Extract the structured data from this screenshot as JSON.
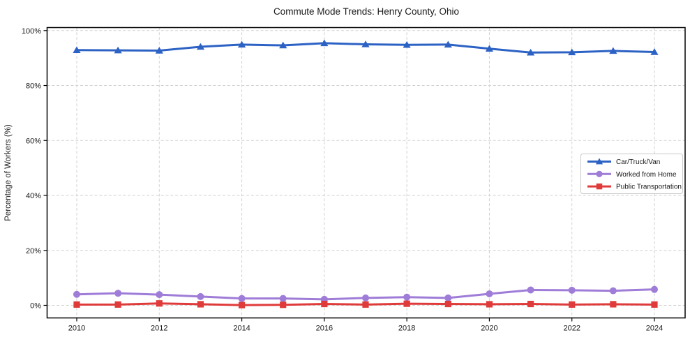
{
  "figure": {
    "background_color": "#ffffff",
    "plot_border_color": "#000000",
    "grid_color": "#d2d2d2"
  },
  "chart_data": {
    "type": "line",
    "title": "Commute Mode Trends: Henry County, Ohio",
    "xlabel": "",
    "ylabel": "Percentage of Workers (%)",
    "x": [
      2010,
      2011,
      2012,
      2013,
      2014,
      2015,
      2016,
      2017,
      2018,
      2019,
      2020,
      2021,
      2022,
      2023,
      2024
    ],
    "x_ticks": [
      2010,
      2012,
      2014,
      2016,
      2018,
      2020,
      2022,
      2024
    ],
    "x_tick_labels": [
      "2010",
      "2012",
      "2014",
      "2016",
      "2018",
      "2020",
      "2022",
      "2024"
    ],
    "y_ticks": [
      0,
      20,
      40,
      60,
      80,
      100
    ],
    "y_tick_labels": [
      "0%",
      "20%",
      "40%",
      "60%",
      "80%",
      "100%"
    ],
    "xlim": [
      2009.3,
      2024.75
    ],
    "ylim": [
      -4.6,
      101.0
    ],
    "grid": "dashed, both axes, at labeled ticks only",
    "legend_position": "center-right",
    "series": [
      {
        "name": "Car/Truck/Van",
        "color": "#2d62c5",
        "marker": "triangle",
        "values": [
          92.9,
          92.8,
          92.7,
          94.1,
          94.9,
          94.6,
          95.4,
          95.0,
          94.8,
          94.9,
          93.4,
          92.0,
          92.1,
          92.6,
          92.2
        ]
      },
      {
        "name": "Worked from Home",
        "color": "#9e7cd8",
        "marker": "circle",
        "values": [
          4.0,
          4.4,
          3.9,
          3.2,
          2.5,
          2.5,
          2.2,
          2.7,
          3.0,
          2.7,
          4.2,
          5.6,
          5.5,
          5.3,
          5.8
        ]
      },
      {
        "name": "Public Transportation",
        "color": "#e03b3b",
        "marker": "square",
        "values": [
          0.3,
          0.3,
          0.7,
          0.4,
          0.1,
          0.2,
          0.5,
          0.3,
          0.6,
          0.5,
          0.4,
          0.5,
          0.3,
          0.4,
          0.3
        ]
      }
    ]
  }
}
